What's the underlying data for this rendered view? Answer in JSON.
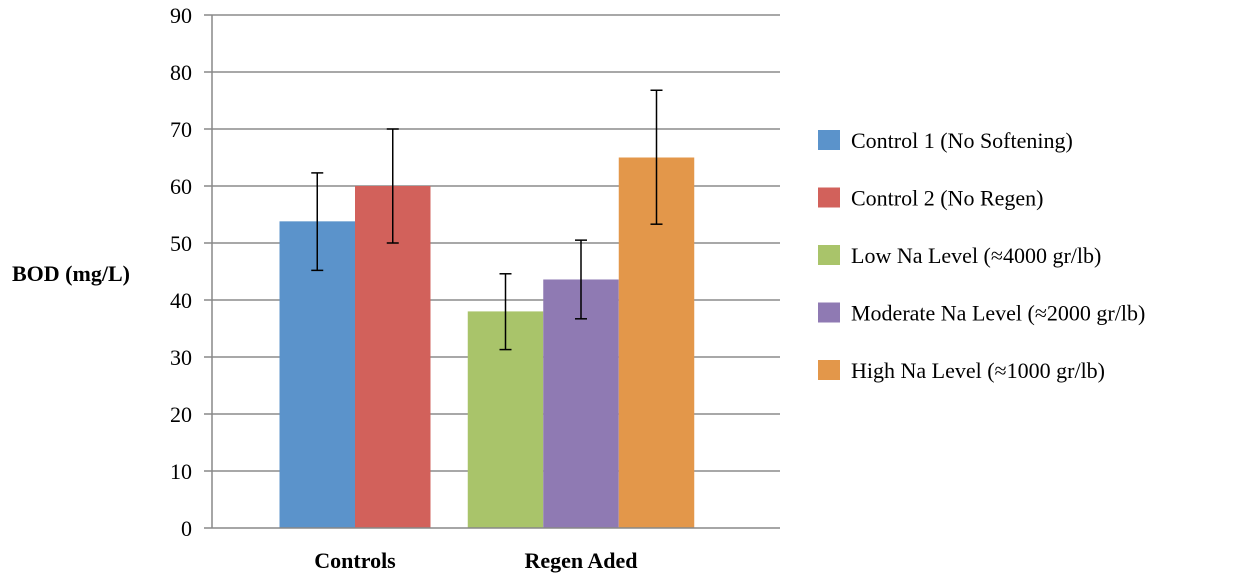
{
  "chart_data": {
    "type": "bar",
    "title": "",
    "xlabel": "",
    "ylabel": "BOD (mg/L)",
    "ylim": [
      0,
      90
    ],
    "yticks": [
      0,
      10,
      20,
      30,
      40,
      50,
      60,
      70,
      80,
      90
    ],
    "grid": true,
    "legend_position": "right",
    "groups": [
      {
        "category": "Controls",
        "bars": [
          {
            "series": "Control 1 (No Softening)",
            "value": 53.8,
            "err_low": 45.2,
            "err_high": 62.3
          },
          {
            "series": "Control 2 (No Regen)",
            "value": 60.0,
            "err_low": 50.0,
            "err_high": 70.0
          }
        ]
      },
      {
        "category": "Regen Aded",
        "bars": [
          {
            "series": "Low Na Level (≈4000 gr/lb)",
            "value": 38.0,
            "err_low": 31.3,
            "err_high": 44.6
          },
          {
            "series": "Moderate Na Level (≈2000 gr/lb)",
            "value": 43.6,
            "err_low": 36.7,
            "err_high": 50.5
          },
          {
            "series": "High Na Level (≈1000 gr/lb)",
            "value": 65.0,
            "err_low": 53.3,
            "err_high": 76.8
          }
        ]
      }
    ],
    "series": [
      {
        "name": "Control 1 (No Softening)",
        "color": "#5b93cb"
      },
      {
        "name": "Control 2 (No Regen)",
        "color": "#d2615b"
      },
      {
        "name": "Low Na Level (≈4000 gr/lb)",
        "color": "#a9c46a"
      },
      {
        "name": "Moderate Na Level (≈2000 gr/lb)",
        "color": "#8f7ab3"
      },
      {
        "name": "High Na Level (≈1000 gr/lb)",
        "color": "#e3974a"
      }
    ]
  }
}
